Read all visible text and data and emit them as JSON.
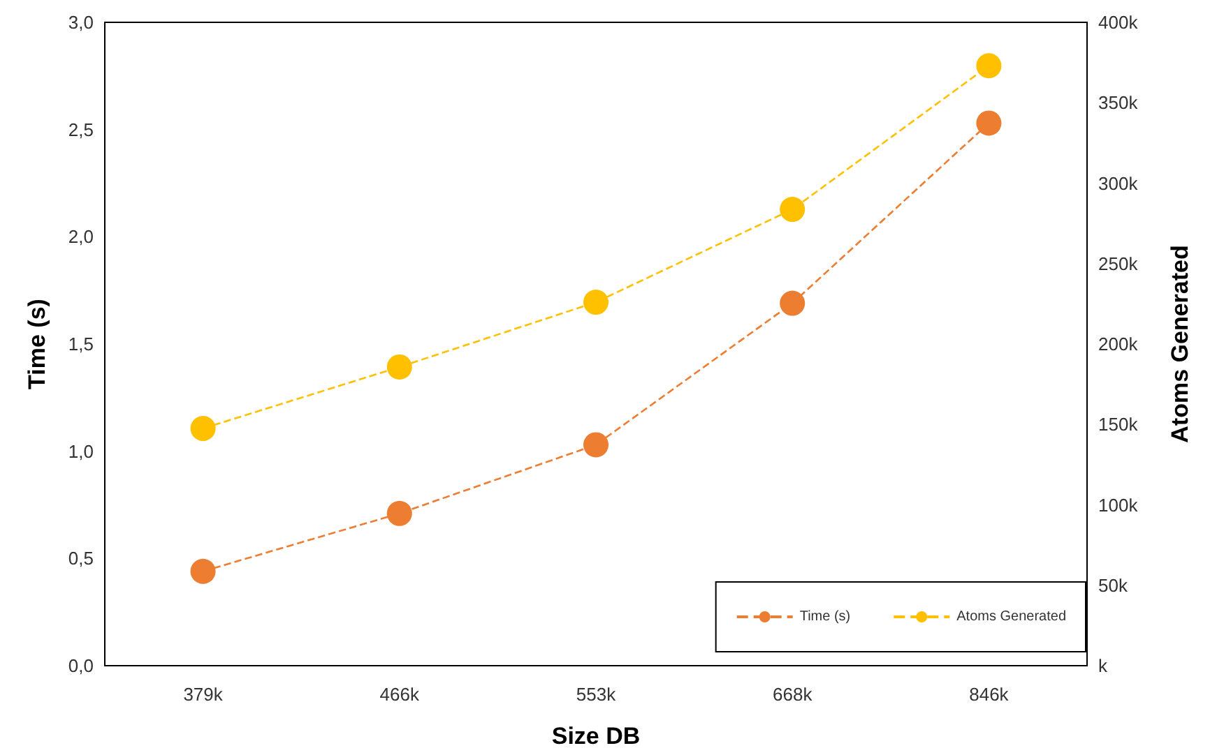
{
  "chart_data": {
    "type": "line",
    "xlabel": "Size DB",
    "ylabel": "Time (s)",
    "y2label": "Atoms Generated",
    "categories": [
      "379k",
      "466k",
      "553k",
      "668k",
      "846k"
    ],
    "series": [
      {
        "name": "Time (s)",
        "color": "#ed7d31",
        "values": [
          0.44,
          0.71,
          1.03,
          1.69,
          2.53
        ]
      },
      {
        "name": "Atoms Generated",
        "color": "#ffc000",
        "axis": "y2",
        "values": [
          147500,
          185700,
          226000,
          283700,
          373000
        ]
      }
    ],
    "ylim": [
      0,
      3
    ],
    "yticks": [
      {
        "value": 0,
        "label": "0,0"
      },
      {
        "value": 0.5,
        "label": "0,5"
      },
      {
        "value": 1,
        "label": "1,0"
      },
      {
        "value": 1.5,
        "label": "1,5"
      },
      {
        "value": 2,
        "label": "2,0"
      },
      {
        "value": 2.5,
        "label": "2,5"
      },
      {
        "value": 3,
        "label": "3,0"
      }
    ],
    "y2lim": [
      0,
      400000
    ],
    "y2ticks": [
      {
        "value": 0,
        "label": "k"
      },
      {
        "value": 50000,
        "label": "50k"
      },
      {
        "value": 100000,
        "label": "100k"
      },
      {
        "value": 150000,
        "label": "150k"
      },
      {
        "value": 200000,
        "label": "200k"
      },
      {
        "value": 250000,
        "label": "250k"
      },
      {
        "value": 300000,
        "label": "300k"
      },
      {
        "value": 350000,
        "label": "350k"
      },
      {
        "value": 400000,
        "label": "400k"
      }
    ],
    "grid": false,
    "legend": "bottom right",
    "marker": "circle",
    "line_style": "dashed"
  }
}
